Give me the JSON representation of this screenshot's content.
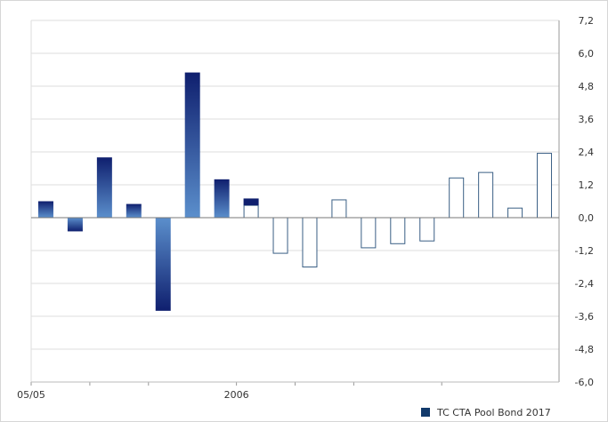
{
  "chart_data": {
    "type": "bar",
    "x_tick_labels": [
      {
        "label": "05/05",
        "index": 0
      },
      {
        "label": "2006",
        "index": 7
      }
    ],
    "values": [
      0.6,
      -0.5,
      2.2,
      0.5,
      -3.4,
      5.3,
      1.4,
      0.7,
      -1.3,
      -1.8,
      0.65,
      -1.1,
      -0.95,
      -0.85,
      1.45,
      1.65,
      0.35,
      2.35
    ],
    "highlighted_count": 7,
    "partial_bar": {
      "index": 7,
      "filled_from": 0.45
    },
    "y_ticks": [
      "7,2",
      "6,0",
      "4,8",
      "3,6",
      "2,4",
      "1,2",
      "0,0",
      "-1,2",
      "-2,4",
      "-3,6",
      "-4,8",
      "-6,0"
    ],
    "ylim": [
      -6.0,
      7.2
    ],
    "y_axis_side": "right",
    "grid": true,
    "legend": {
      "label": "TC CTA Pool Bond 2017",
      "position": "bottom-right"
    },
    "colors": {
      "dark": "#0f1f6e",
      "light": "#5b8fcc",
      "outline": "#3a5f85",
      "grid": "#dddddd"
    }
  }
}
